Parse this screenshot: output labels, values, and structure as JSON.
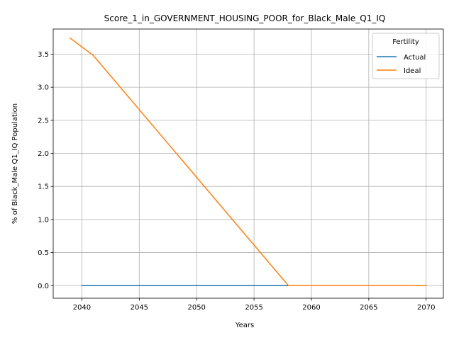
{
  "chart_data": {
    "type": "line",
    "title": "Score_1_in_GOVERNMENT_HOUSING_POOR_for_Black_Male_Q1_IQ",
    "xlabel": "Years",
    "ylabel": "% of Black_Male Q1_IQ Population",
    "xlim": [
      2037.5,
      2071.5
    ],
    "ylim": [
      -0.19,
      3.88
    ],
    "xticks": [
      2040,
      2045,
      2050,
      2055,
      2060,
      2065,
      2070
    ],
    "yticks": [
      0.0,
      0.5,
      1.0,
      1.5,
      2.0,
      2.5,
      3.0,
      3.5
    ],
    "grid": true,
    "legend": {
      "title": "Fertility",
      "placement": "top-right"
    },
    "series": [
      {
        "name": "Actual",
        "color": "#1f77b4",
        "x": [
          2040,
          2058,
          2070
        ],
        "y": [
          0.0,
          0.0,
          0.0
        ]
      },
      {
        "name": "Ideal",
        "color": "#ff7f0e",
        "x": [
          2039,
          2041,
          2058,
          2070
        ],
        "y": [
          3.74,
          3.48,
          0.0,
          0.0
        ]
      }
    ]
  }
}
